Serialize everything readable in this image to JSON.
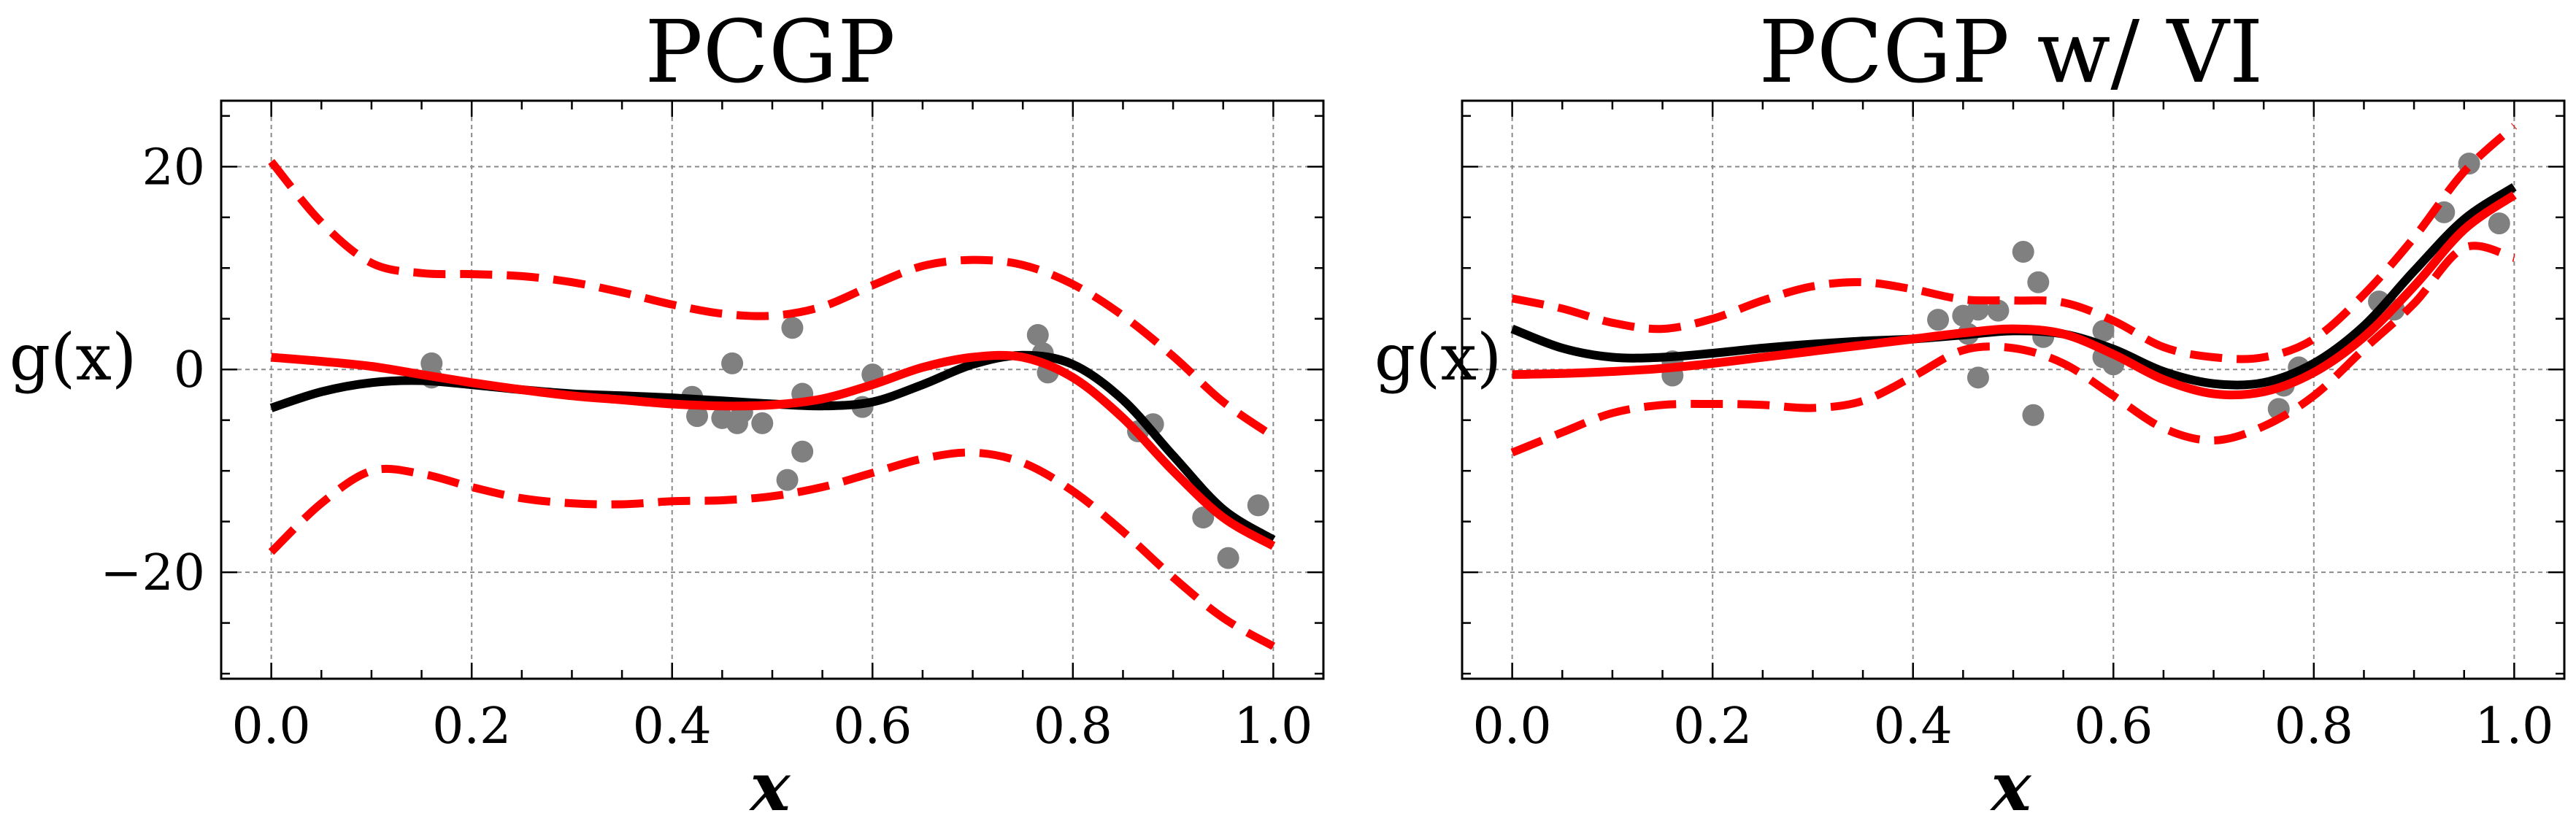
{
  "chart_data": [
    {
      "type": "line",
      "title": "PCGP",
      "xlabel": "x",
      "ylabel": "g(x)",
      "xlim": [
        -0.05,
        1.05
      ],
      "ylim": [
        -30.5,
        26.5
      ],
      "xticks": [
        0.0,
        0.2,
        0.4,
        0.6,
        0.8,
        1.0
      ],
      "xtick_labels": [
        "0.0",
        "0.2",
        "0.4",
        "0.6",
        "0.8",
        "1.0"
      ],
      "yticks": [
        -20,
        0,
        20
      ],
      "ytick_labels": [
        "−20",
        "0",
        "20"
      ],
      "grid": true,
      "series": [
        {
          "role": "truth",
          "color": "#000000",
          "style": "solid",
          "x": [
            0.0,
            0.05,
            0.1,
            0.15,
            0.2,
            0.25,
            0.3,
            0.35,
            0.4,
            0.45,
            0.5,
            0.55,
            0.6,
            0.65,
            0.7,
            0.75,
            0.8,
            0.85,
            0.9,
            0.95,
            1.0
          ],
          "values": [
            -3.8,
            -2.2,
            -1.3,
            -1.1,
            -1.5,
            -2.0,
            -2.4,
            -2.6,
            -2.8,
            -3.1,
            -3.4,
            -3.6,
            -3.2,
            -1.5,
            0.5,
            1.4,
            0.5,
            -3.0,
            -8.5,
            -13.8,
            -16.8
          ]
        },
        {
          "role": "mean",
          "color": "#ff0000",
          "style": "solid",
          "x": [
            0.0,
            0.05,
            0.1,
            0.15,
            0.2,
            0.25,
            0.3,
            0.35,
            0.4,
            0.45,
            0.5,
            0.55,
            0.6,
            0.65,
            0.7,
            0.75,
            0.8,
            0.85,
            0.9,
            0.95,
            1.0
          ],
          "values": [
            1.2,
            0.8,
            0.3,
            -0.5,
            -1.3,
            -2.0,
            -2.6,
            -3.0,
            -3.4,
            -3.6,
            -3.5,
            -2.9,
            -1.5,
            0.2,
            1.2,
            1.2,
            -0.8,
            -4.8,
            -10.0,
            -14.6,
            -17.4
          ]
        },
        {
          "role": "upper-bound",
          "color": "#ff0000",
          "style": "dashed",
          "x": [
            0.0,
            0.05,
            0.1,
            0.15,
            0.2,
            0.25,
            0.3,
            0.35,
            0.4,
            0.45,
            0.5,
            0.55,
            0.6,
            0.65,
            0.7,
            0.75,
            0.8,
            0.85,
            0.9,
            0.95,
            1.0
          ],
          "values": [
            20.5,
            14.5,
            10.5,
            9.5,
            9.4,
            9.2,
            8.6,
            7.6,
            6.4,
            5.5,
            5.3,
            6.2,
            8.3,
            10.2,
            10.8,
            10.3,
            8.4,
            5.3,
            1.3,
            -3.2,
            -6.6
          ]
        },
        {
          "role": "lower-bound",
          "color": "#ff0000",
          "style": "dashed",
          "x": [
            0.0,
            0.05,
            0.1,
            0.15,
            0.2,
            0.25,
            0.3,
            0.35,
            0.4,
            0.45,
            0.5,
            0.55,
            0.6,
            0.65,
            0.7,
            0.75,
            0.8,
            0.85,
            0.9,
            0.95,
            1.0
          ],
          "values": [
            -18.0,
            -13.2,
            -10.0,
            -10.3,
            -11.6,
            -12.7,
            -13.2,
            -13.3,
            -13.0,
            -12.9,
            -12.5,
            -11.6,
            -10.2,
            -8.8,
            -8.2,
            -9.2,
            -12.0,
            -16.0,
            -20.5,
            -24.5,
            -27.3
          ]
        },
        {
          "role": "observations",
          "color": "#808080",
          "style": "points",
          "x": [
            0.16,
            0.16,
            0.42,
            0.425,
            0.45,
            0.46,
            0.465,
            0.47,
            0.49,
            0.515,
            0.52,
            0.53,
            0.53,
            0.59,
            0.6,
            0.765,
            0.77,
            0.775,
            0.865,
            0.88,
            0.93,
            0.955,
            0.985
          ],
          "values": [
            0.6,
            -0.8,
            -2.7,
            -4.6,
            -4.8,
            0.6,
            -5.3,
            -4.2,
            -5.3,
            -10.9,
            4.1,
            -2.4,
            -8.1,
            -3.7,
            -0.5,
            3.4,
            1.6,
            -0.3,
            -6.1,
            -5.4,
            -14.6,
            -18.6,
            -13.4
          ]
        }
      ]
    },
    {
      "type": "line",
      "title": "PCGP w/ VI",
      "xlabel": "x",
      "ylabel": "g(x)",
      "xlim": [
        -0.05,
        1.05
      ],
      "ylim": [
        -30.5,
        26.5
      ],
      "xticks": [
        0.0,
        0.2,
        0.4,
        0.6,
        0.8,
        1.0
      ],
      "xtick_labels": [
        "0.0",
        "0.2",
        "0.4",
        "0.6",
        "0.8",
        "1.0"
      ],
      "yticks": [
        -20,
        0,
        20
      ],
      "ytick_labels": [
        "",
        "",
        ""
      ],
      "grid": true,
      "series": [
        {
          "role": "truth",
          "color": "#000000",
          "style": "solid",
          "x": [
            0.0,
            0.05,
            0.1,
            0.15,
            0.2,
            0.25,
            0.3,
            0.35,
            0.4,
            0.45,
            0.5,
            0.55,
            0.6,
            0.65,
            0.7,
            0.75,
            0.8,
            0.85,
            0.9,
            0.95,
            1.0
          ],
          "values": [
            4.0,
            2.1,
            1.2,
            1.2,
            1.6,
            2.1,
            2.5,
            2.8,
            3.0,
            3.4,
            3.8,
            3.5,
            2.0,
            -0.2,
            -1.4,
            -1.3,
            0.6,
            4.3,
            9.7,
            14.8,
            18.0
          ]
        },
        {
          "role": "mean",
          "color": "#ff0000",
          "style": "solid",
          "x": [
            0.0,
            0.05,
            0.1,
            0.15,
            0.2,
            0.25,
            0.3,
            0.35,
            0.4,
            0.45,
            0.5,
            0.55,
            0.6,
            0.65,
            0.7,
            0.75,
            0.8,
            0.85,
            0.9,
            0.95,
            1.0
          ],
          "values": [
            -0.5,
            -0.4,
            -0.2,
            0.1,
            0.6,
            1.2,
            1.8,
            2.4,
            3.0,
            3.6,
            4.0,
            3.5,
            1.5,
            -1.0,
            -2.4,
            -2.2,
            -0.3,
            3.2,
            8.2,
            13.8,
            17.2
          ]
        },
        {
          "role": "upper-bound",
          "color": "#ff0000",
          "style": "dashed",
          "x": [
            0.0,
            0.05,
            0.1,
            0.15,
            0.2,
            0.25,
            0.3,
            0.35,
            0.4,
            0.45,
            0.5,
            0.55,
            0.6,
            0.65,
            0.7,
            0.75,
            0.8,
            0.85,
            0.9,
            0.95,
            1.0
          ],
          "values": [
            7.0,
            6.0,
            4.6,
            4.0,
            5.0,
            6.8,
            8.2,
            8.6,
            7.9,
            6.9,
            6.8,
            6.6,
            4.8,
            2.2,
            1.2,
            1.2,
            3.0,
            7.4,
            13.0,
            19.5,
            24.0
          ]
        },
        {
          "role": "lower-bound",
          "color": "#ff0000",
          "style": "dashed",
          "x": [
            0.0,
            0.05,
            0.1,
            0.15,
            0.2,
            0.25,
            0.3,
            0.35,
            0.4,
            0.45,
            0.5,
            0.55,
            0.6,
            0.65,
            0.7,
            0.75,
            0.8,
            0.85,
            0.9,
            0.95,
            1.0
          ],
          "values": [
            -8.2,
            -6.2,
            -4.3,
            -3.5,
            -3.4,
            -3.5,
            -3.8,
            -3.1,
            -0.7,
            1.9,
            2.1,
            0.6,
            -2.6,
            -5.8,
            -7.0,
            -5.6,
            -2.6,
            2.0,
            6.5,
            12.0,
            11.0
          ]
        },
        {
          "role": "observations",
          "color": "#808080",
          "style": "points",
          "x": [
            0.16,
            0.16,
            0.425,
            0.45,
            0.455,
            0.465,
            0.465,
            0.485,
            0.51,
            0.52,
            0.525,
            0.53,
            0.59,
            0.59,
            0.6,
            0.765,
            0.77,
            0.785,
            0.865,
            0.88,
            0.93,
            0.955,
            0.985
          ],
          "values": [
            0.8,
            -0.6,
            4.9,
            5.3,
            3.5,
            5.9,
            -0.8,
            5.8,
            11.6,
            -4.5,
            8.6,
            3.2,
            3.8,
            1.2,
            0.5,
            -3.9,
            -1.6,
            0.2,
            6.7,
            5.9,
            15.5,
            20.3,
            14.4
          ]
        }
      ]
    }
  ]
}
